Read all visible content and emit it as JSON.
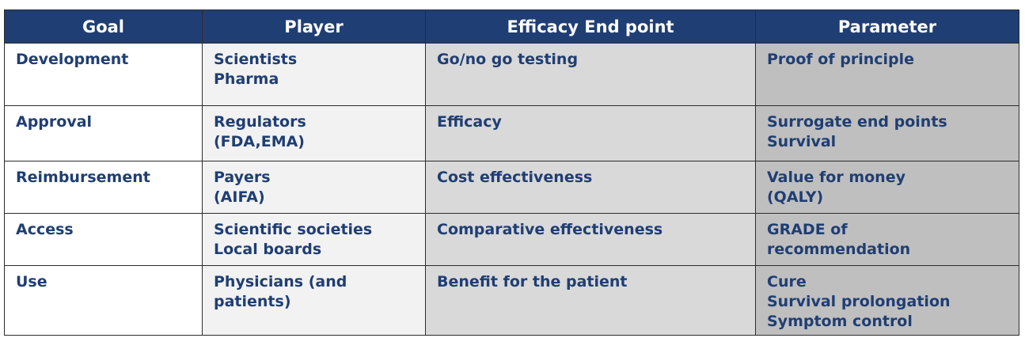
{
  "colors": {
    "header_bg": "#1f3e73",
    "header_text": "#ffffff",
    "cell_text": "#1f3e73",
    "col_bg": [
      "#ffffff",
      "#f2f2f2",
      "#d9d9d9",
      "#bfbfbf"
    ]
  },
  "headers": [
    "Goal",
    "Player",
    "Efficacy End point",
    "Parameter"
  ],
  "rows": [
    [
      [
        "Development"
      ],
      [
        "Scientists",
        "Pharma"
      ],
      [
        "Go/no go testing"
      ],
      [
        "Proof of principle"
      ]
    ],
    [
      [
        "Approval"
      ],
      [
        "Regulators",
        "(FDA,EMA)"
      ],
      [
        "Efficacy"
      ],
      [
        "Surrogate end points",
        "Survival"
      ]
    ],
    [
      [
        "Reimbursement"
      ],
      [
        "Payers",
        "(AIFA)"
      ],
      [
        "Cost effectiveness"
      ],
      [
        "Value for money",
        "(QALY)"
      ]
    ],
    [
      [
        "Access"
      ],
      [
        "Scientific societies",
        "Local boards"
      ],
      [
        "Comparative effectiveness"
      ],
      [
        "GRADE of",
        "recommendation"
      ]
    ],
    [
      [
        "Use"
      ],
      [
        "Physicians (and",
        "patients)"
      ],
      [
        "Benefit for the patient"
      ],
      [
        "Cure",
        "Survival prolongation",
        "Symptom control"
      ]
    ]
  ]
}
